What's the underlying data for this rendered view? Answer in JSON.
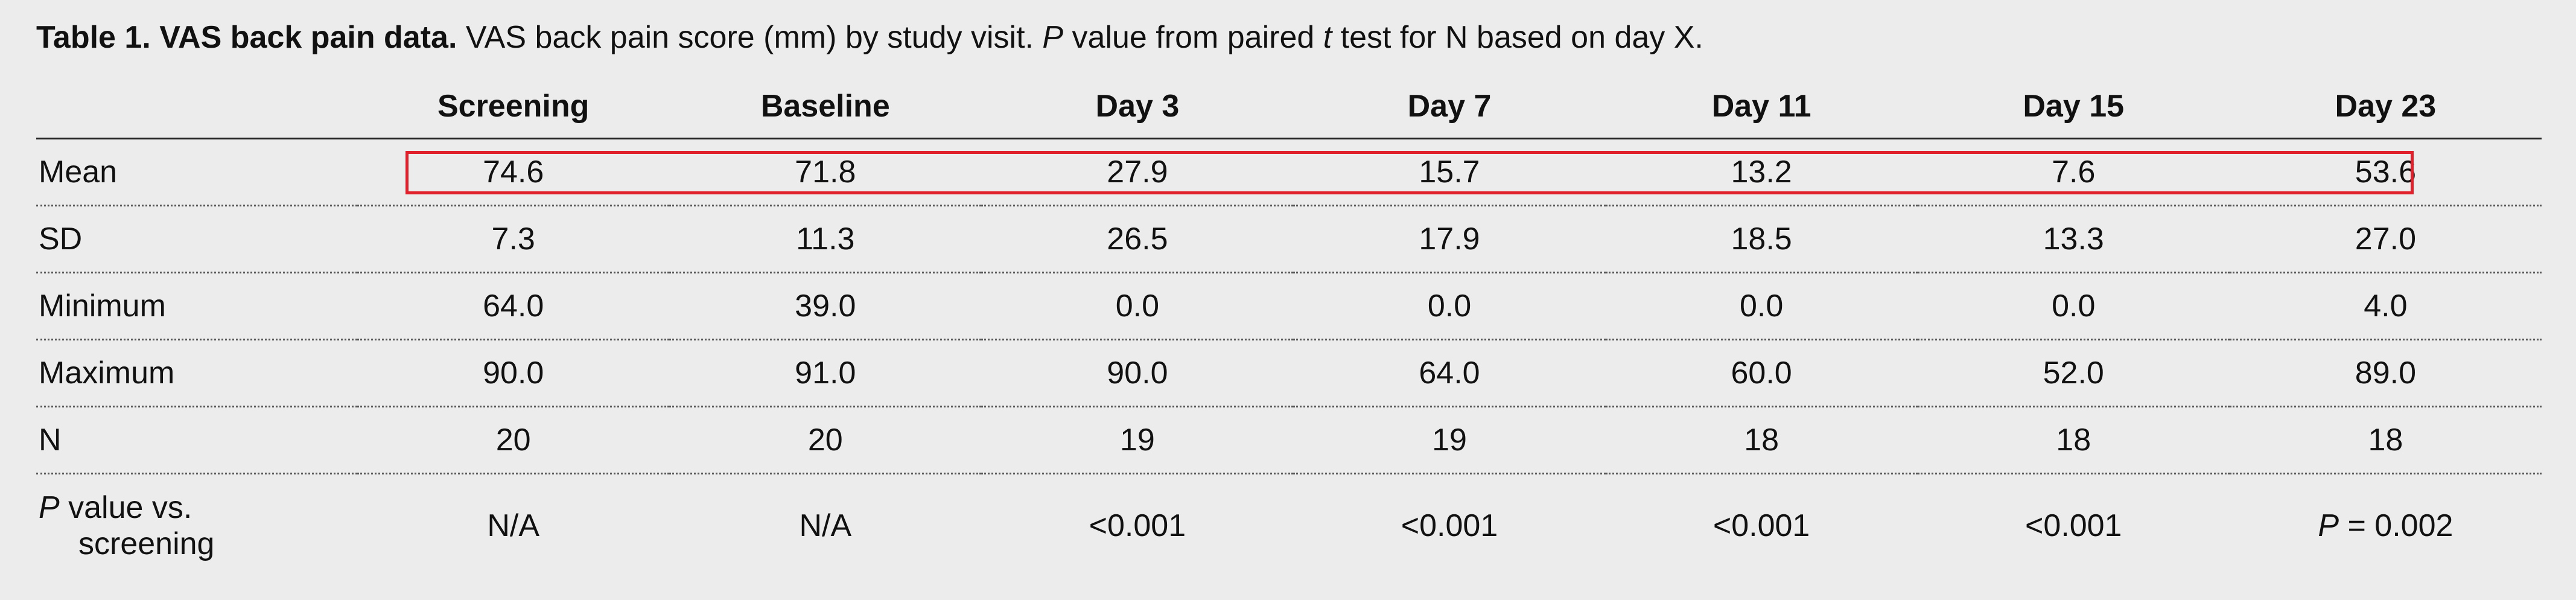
{
  "caption": {
    "bold": "Table 1. VAS back pain data.",
    "text1": " VAS back pain score (mm) by study visit. ",
    "p_italic": "P",
    "text2": " value from paired ",
    "t_italic": "t",
    "text3": " test for N based on day X."
  },
  "table": {
    "columns": [
      "Screening",
      "Baseline",
      "Day 3",
      "Day 7",
      "Day 11",
      "Day 15",
      "Day 23"
    ],
    "rows": [
      {
        "label": "Mean",
        "values": [
          "74.6",
          "71.8",
          "27.9",
          "15.7",
          "13.2",
          "7.6",
          "53.6"
        ]
      },
      {
        "label": "SD",
        "values": [
          "7.3",
          "11.3",
          "26.5",
          "17.9",
          "18.5",
          "13.3",
          "27.0"
        ]
      },
      {
        "label": "Minimum",
        "values": [
          "64.0",
          "39.0",
          "0.0",
          "0.0",
          "0.0",
          "0.0",
          "4.0"
        ]
      },
      {
        "label": "Maximum",
        "values": [
          "90.0",
          "91.0",
          "90.0",
          "64.0",
          "60.0",
          "52.0",
          "89.0"
        ]
      },
      {
        "label": "N",
        "values": [
          "20",
          "20",
          "19",
          "19",
          "18",
          "18",
          "18"
        ]
      }
    ],
    "pvalue_row": {
      "label_p": "P",
      "label_rest": " value vs.",
      "label_line2": "screening",
      "values": [
        "N/A",
        "N/A",
        "<0.001",
        "<0.001",
        "<0.001",
        "<0.001"
      ],
      "last_p": "P",
      "last_rest": " = 0.002"
    }
  },
  "highlight": {
    "color": "#e0202a",
    "target_row": "Mean"
  }
}
